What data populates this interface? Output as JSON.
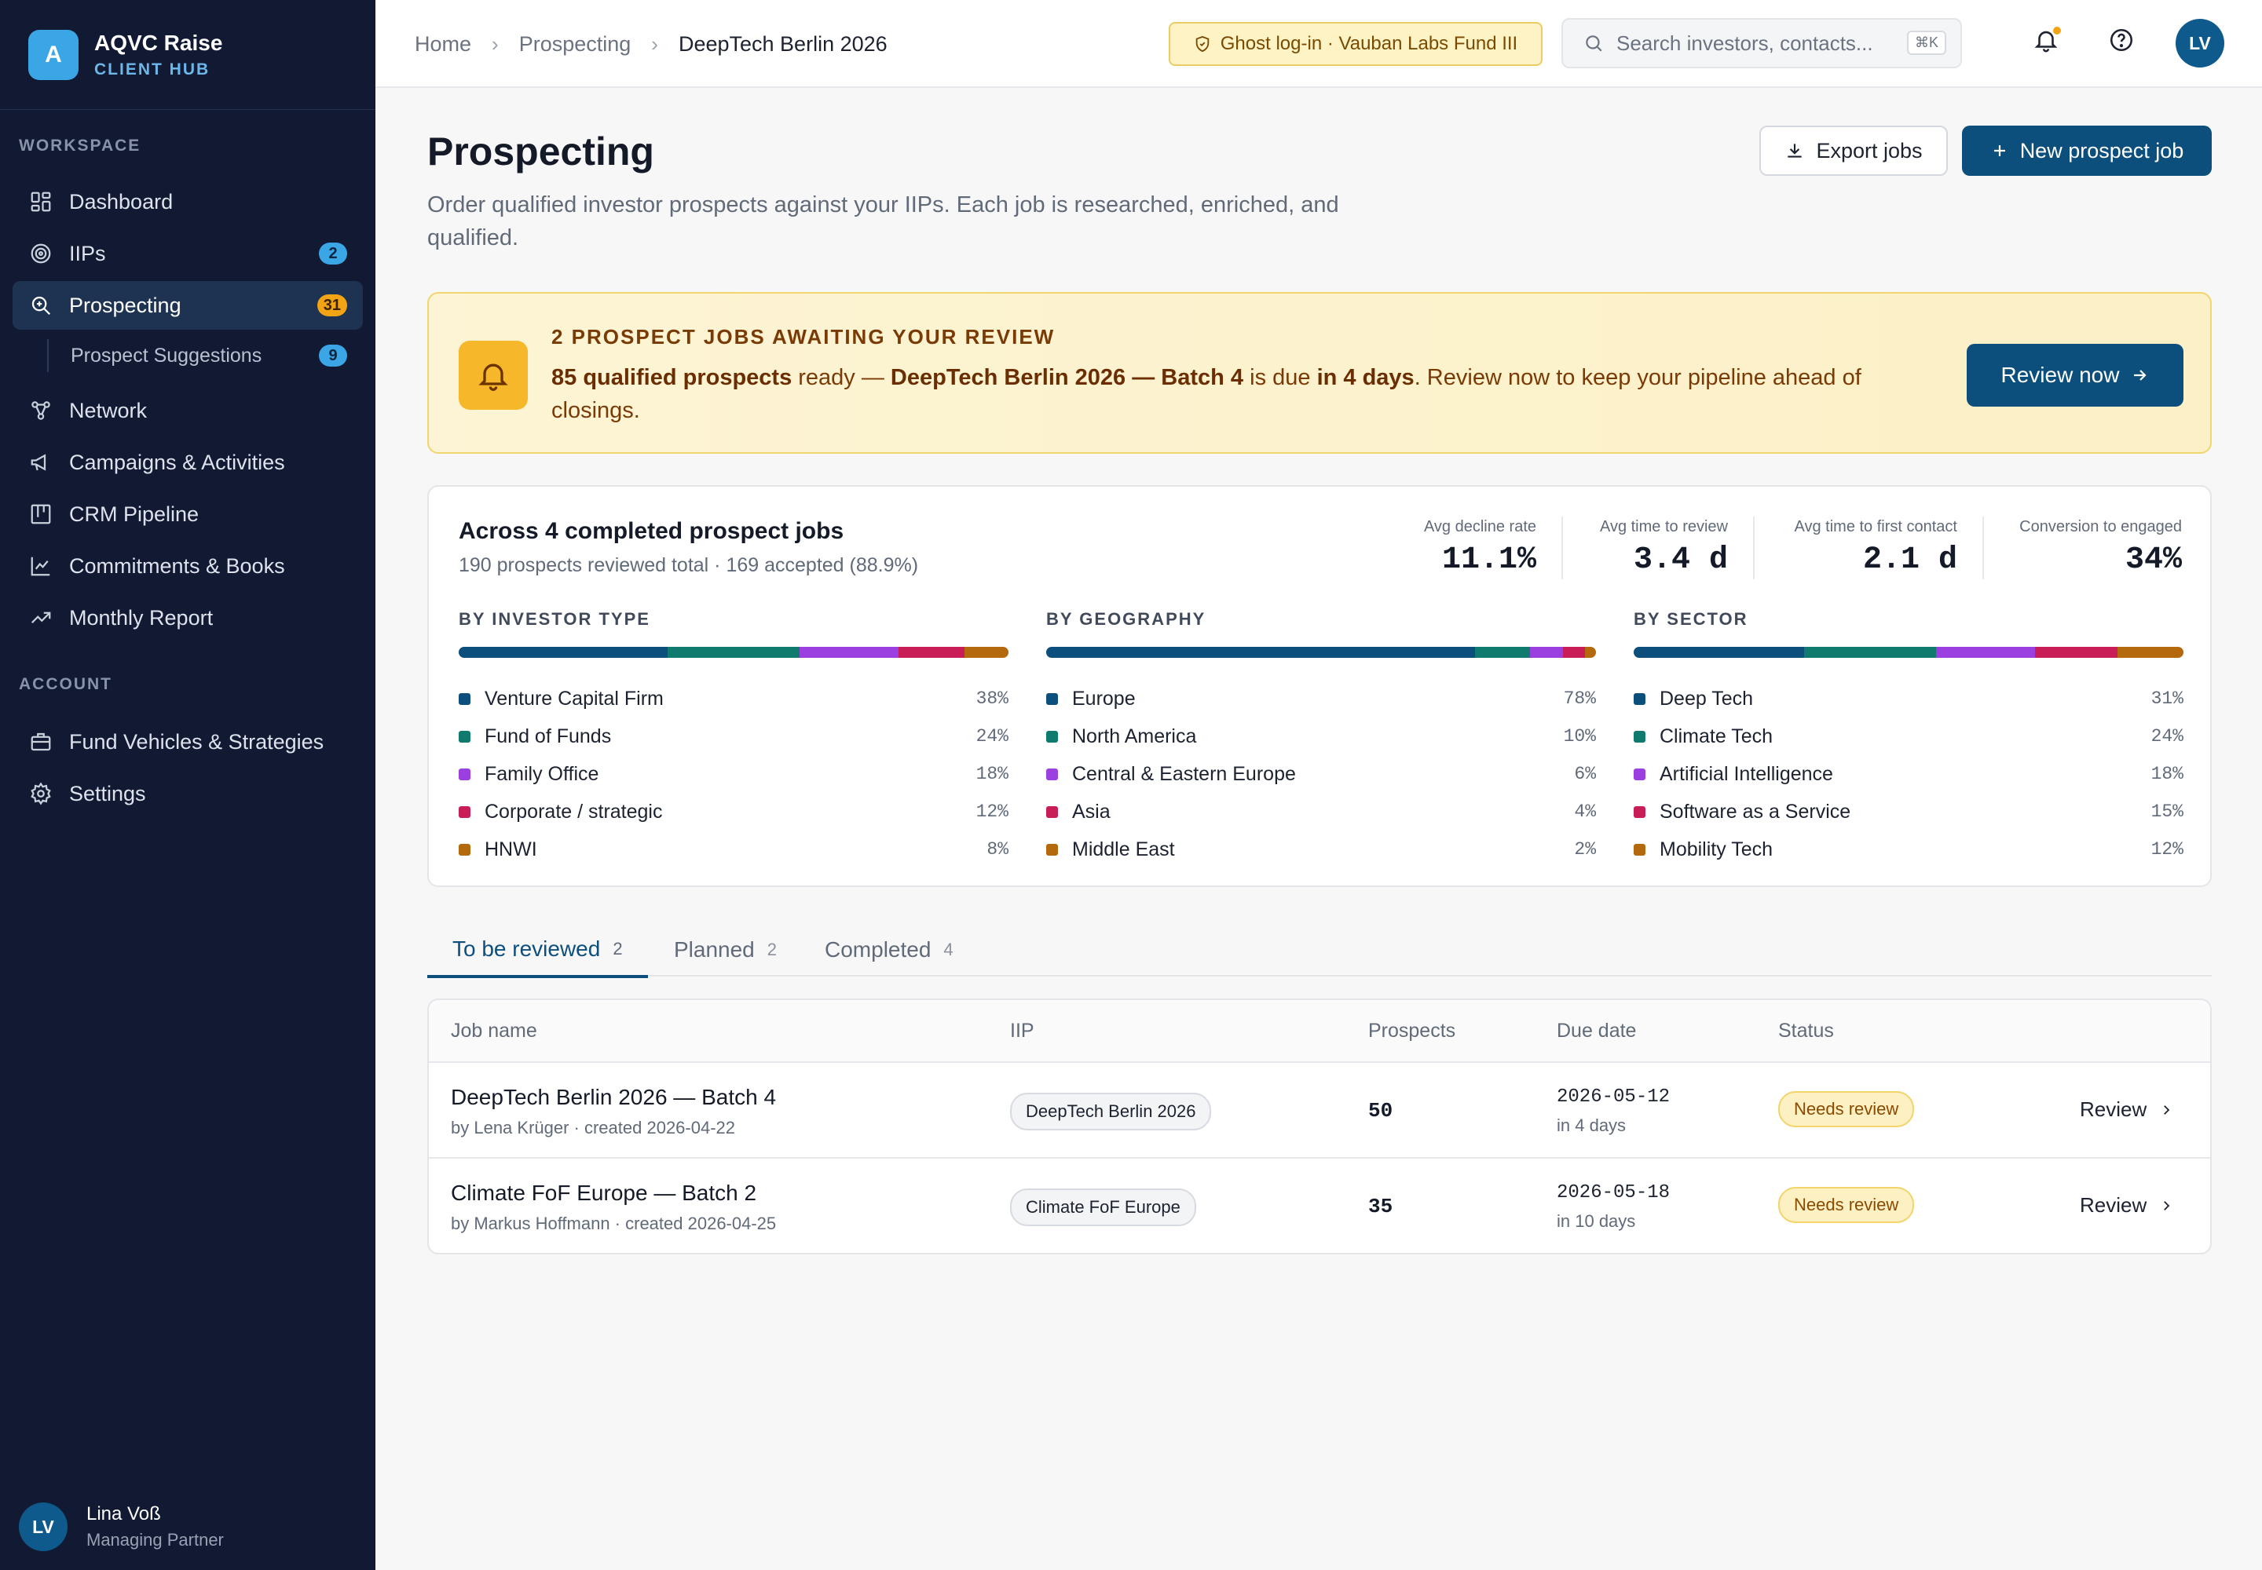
{
  "sidebar": {
    "logo_letter": "A",
    "brand_name": "AQVC Raise",
    "brand_sub": "CLIENT HUB",
    "workspace_label": "WORKSPACE",
    "account_label": "ACCOUNT",
    "items": [
      {
        "label": "Dashboard",
        "icon": "dashboard-icon"
      },
      {
        "label": "IIPs",
        "icon": "target-icon",
        "badge": "2"
      },
      {
        "label": "Prospecting",
        "icon": "search-icon",
        "badge": "31",
        "active": true
      },
      {
        "label": "Prospect Suggestions",
        "badge": "9",
        "sub": true
      },
      {
        "label": "Network",
        "icon": "network-icon"
      },
      {
        "label": "Campaigns & Activities",
        "icon": "megaphone-icon"
      },
      {
        "label": "CRM Pipeline",
        "icon": "kanban-icon"
      },
      {
        "label": "Commitments & Books",
        "icon": "chart-line-icon"
      },
      {
        "label": "Monthly Report",
        "icon": "trend-icon"
      }
    ],
    "account_items": [
      {
        "label": "Fund Vehicles & Strategies",
        "icon": "briefcase-icon"
      },
      {
        "label": "Settings",
        "icon": "gear-icon"
      }
    ],
    "user": {
      "initials": "LV",
      "name": "Lina Voß",
      "role": "Managing Partner"
    }
  },
  "topbar": {
    "breadcrumbs": [
      "Home",
      "Prospecting",
      "DeepTech Berlin 2026"
    ],
    "ghost_login": "Ghost log-in · Vauban Labs Fund III",
    "search_placeholder": "Search investors, contacts...",
    "search_shortcut": "⌘K",
    "avatar_initials": "LV",
    "notification_dot_color": "#f2a415"
  },
  "page": {
    "title": "Prospecting",
    "description": "Order qualified investor prospects against your IIPs. Each job is researched, enriched, and qualified.",
    "export_label": "Export jobs",
    "new_label": "New prospect job"
  },
  "alert": {
    "title": "2 PROSPECT JOBS AWAITING YOUR REVIEW",
    "count_text": "85 qualified prospects",
    "t1": " ready — ",
    "job_text": "DeepTech Berlin 2026 — Batch 4",
    "t2": " is due ",
    "due_text": "in 4 days",
    "t3": ". Review now to keep your pipeline ahead of closings.",
    "button": "Review now"
  },
  "stats": {
    "title": "Across 4 completed prospect jobs",
    "subtitle": "190 prospects reviewed total · 169 accepted (88.9%)",
    "kpis": [
      {
        "label": "Avg decline rate",
        "value": "11.1%"
      },
      {
        "label": "Avg time to review",
        "value": "3.4 d"
      },
      {
        "label": "Avg time to first contact",
        "value": "2.1 d"
      },
      {
        "label": "Conversion to engaged",
        "value": "34%"
      }
    ],
    "palette": [
      "#0d4f7c",
      "#0f7a6e",
      "#9b3fe0",
      "#c81d57",
      "#b3690c"
    ],
    "breakdowns": [
      {
        "label": "BY INVESTOR TYPE",
        "items": [
          {
            "name": "Venture Capital Firm",
            "pct": "38%",
            "value": 38
          },
          {
            "name": "Fund of Funds",
            "pct": "24%",
            "value": 24
          },
          {
            "name": "Family Office",
            "pct": "18%",
            "value": 18
          },
          {
            "name": "Corporate / strategic",
            "pct": "12%",
            "value": 12
          },
          {
            "name": "HNWI",
            "pct": "8%",
            "value": 8
          }
        ]
      },
      {
        "label": "BY GEOGRAPHY",
        "items": [
          {
            "name": "Europe",
            "pct": "78%",
            "value": 78
          },
          {
            "name": "North America",
            "pct": "10%",
            "value": 10
          },
          {
            "name": "Central & Eastern Europe",
            "pct": "6%",
            "value": 6
          },
          {
            "name": "Asia",
            "pct": "4%",
            "value": 4
          },
          {
            "name": "Middle East",
            "pct": "2%",
            "value": 2
          }
        ]
      },
      {
        "label": "BY SECTOR",
        "items": [
          {
            "name": "Deep Tech",
            "pct": "31%",
            "value": 31
          },
          {
            "name": "Climate Tech",
            "pct": "24%",
            "value": 24
          },
          {
            "name": "Artificial Intelligence",
            "pct": "18%",
            "value": 18
          },
          {
            "name": "Software as a Service",
            "pct": "15%",
            "value": 15
          },
          {
            "name": "Mobility Tech",
            "pct": "12%",
            "value": 12
          }
        ]
      }
    ]
  },
  "tabs": [
    {
      "label": "To be reviewed",
      "count": "2",
      "active": true
    },
    {
      "label": "Planned",
      "count": "2"
    },
    {
      "label": "Completed",
      "count": "4"
    }
  ],
  "table": {
    "columns": [
      "Job name",
      "IIP",
      "Prospects",
      "Due date",
      "Status"
    ],
    "rows": [
      {
        "name": "DeepTech Berlin 2026 — Batch 4",
        "meta": "by Lena Krüger · created 2026-04-22",
        "iip": "DeepTech Berlin 2026",
        "prospects": "50",
        "due": "2026-05-12",
        "due_rel": "in 4 days",
        "status": "Needs review",
        "action": "Review"
      },
      {
        "name": "Climate FoF Europe — Batch 2",
        "meta": "by Markus Hoffmann · created 2026-04-25",
        "iip": "Climate FoF Europe",
        "prospects": "35",
        "due": "2026-05-18",
        "due_rel": "in 10 days",
        "status": "Needs review",
        "action": "Review"
      }
    ]
  }
}
